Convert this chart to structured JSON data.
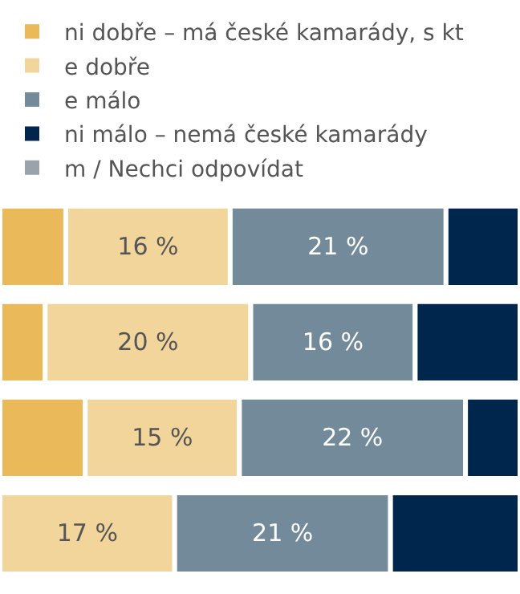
{
  "chart_data": {
    "type": "bar",
    "orientation": "horizontal",
    "stacked": true,
    "categories": [
      null,
      null,
      null,
      null
    ],
    "xlim": [
      0,
      50.6
    ],
    "tick_labels": false,
    "legend": "top left",
    "series": [
      {
        "name": "ni dobře – má české kamarády, s kt",
        "color": "#e9b95a",
        "values": [
          6.4,
          4.4,
          8.3,
          null
        ],
        "value_labels": [
          null,
          null,
          null,
          null
        ]
      },
      {
        "name": "e dobře",
        "color": "#f2d59b",
        "values": [
          16,
          20,
          15,
          17
        ],
        "value_labels": [
          "16 %",
          "20 %",
          "15 %",
          "17 %"
        ]
      },
      {
        "name": "e málo",
        "color": "#738a9b",
        "values": [
          21,
          16,
          22,
          21
        ],
        "value_labels": [
          "21 %",
          "16 %",
          "22 %",
          "21 %"
        ]
      },
      {
        "name": "ni málo – nemá české kamarády",
        "color": "#00264d",
        "values": [
          7.2,
          10.2,
          5.3,
          12.6
        ],
        "value_labels": [
          null,
          null,
          null,
          null
        ]
      },
      {
        "name": "m / Nechci odpovídat",
        "color": "#9aa3ab",
        "values": [
          null,
          null,
          null,
          null
        ],
        "value_labels": [
          null,
          null,
          null,
          null
        ]
      }
    ]
  }
}
